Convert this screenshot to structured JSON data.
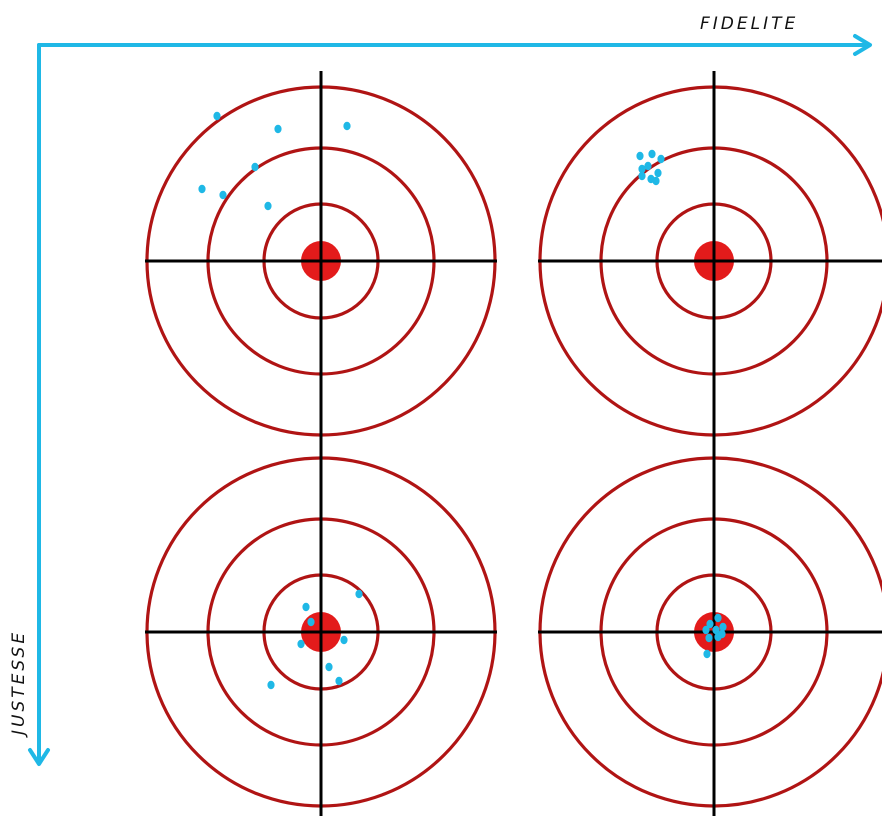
{
  "axes": {
    "x_label": "FIDELITE",
    "y_label": "JUSTESSE",
    "color": "#1fb8e6"
  },
  "colors": {
    "ring": "#b01414",
    "bullseye": "#e31b1b",
    "crosshair": "#000000",
    "shot": "#1fb8e6"
  },
  "targets": [
    {
      "id": "top-left",
      "fidelity": "low",
      "accuracy": "low",
      "shots": [
        [
          -1.04,
          -1.45
        ],
        [
          -0.43,
          -1.32
        ],
        [
          0.26,
          -1.35
        ],
        [
          -0.66,
          -0.94
        ],
        [
          -1.19,
          -0.72
        ],
        [
          -0.98,
          -0.66
        ],
        [
          -0.53,
          -0.55
        ]
      ]
    },
    {
      "id": "top-right",
      "fidelity": "high",
      "accuracy": "low",
      "shots": [
        [
          -0.74,
          -1.05
        ],
        [
          -0.62,
          -1.07
        ],
        [
          -0.53,
          -1.02
        ],
        [
          -0.72,
          -0.92
        ],
        [
          -0.66,
          -0.95
        ],
        [
          -0.56,
          -0.88
        ],
        [
          -0.72,
          -0.85
        ],
        [
          -0.63,
          -0.82
        ],
        [
          -0.58,
          -0.8
        ]
      ]
    },
    {
      "id": "bottom-left",
      "fidelity": "low",
      "accuracy": "high",
      "shots": [
        [
          -0.5,
          0.53
        ],
        [
          0.18,
          0.49
        ],
        [
          0.08,
          0.35
        ],
        [
          -0.2,
          0.12
        ],
        [
          0.23,
          0.08
        ],
        [
          -0.1,
          -0.1
        ],
        [
          -0.15,
          -0.25
        ],
        [
          0.38,
          -0.38
        ]
      ]
    },
    {
      "id": "bottom-right",
      "fidelity": "high",
      "accuracy": "high",
      "shots": [
        [
          -0.07,
          0.22
        ],
        [
          -0.05,
          0.06
        ],
        [
          0.04,
          0.05
        ],
        [
          0.08,
          0.02
        ],
        [
          -0.08,
          -0.02
        ],
        [
          0.02,
          -0.02
        ],
        [
          0.09,
          -0.05
        ],
        [
          -0.04,
          -0.08
        ],
        [
          0.04,
          -0.14
        ]
      ]
    }
  ]
}
